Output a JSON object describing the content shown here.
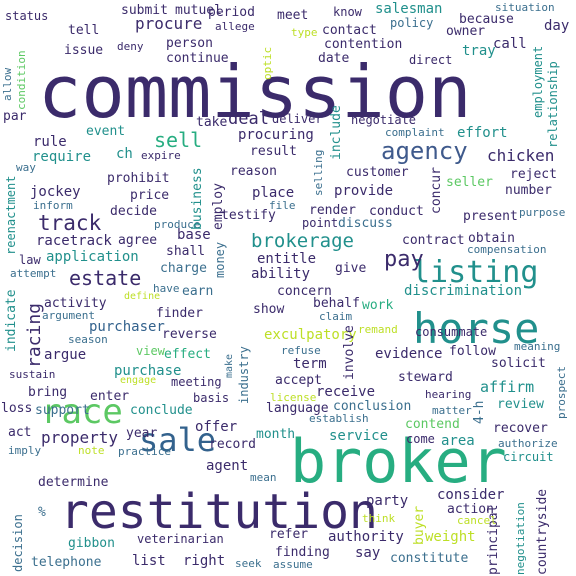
{
  "palette": {
    "navy": "#3b2b6b",
    "indigo": "#433a83",
    "blue": "#33628d",
    "steel": "#3f5a8c",
    "teal": "#21908c",
    "green": "#27ad81",
    "lime": "#5cc863",
    "yellow": "#bddf26",
    "gray": "#3b6f8e"
  },
  "words": [
    {
      "text": "commission",
      "color": "#3b2b6b"
    },
    {
      "text": "broker",
      "color": "#27ad81"
    },
    {
      "text": "restitution",
      "color": "#3b2b6b"
    },
    {
      "text": "horse",
      "color": "#21908c"
    },
    {
      "text": "sale",
      "color": "#33628d"
    },
    {
      "text": "race",
      "color": "#5cc863"
    },
    {
      "text": "listing",
      "color": "#21908c"
    },
    {
      "text": "agency",
      "color": "#3f5a8c"
    },
    {
      "text": "brokerage",
      "color": "#21908c"
    },
    {
      "text": "track",
      "color": "#3b2b6b"
    },
    {
      "text": "sell",
      "color": "#27ad81"
    },
    {
      "text": "pay",
      "color": "#3b2b6b"
    },
    {
      "text": "racing",
      "color": "#3b2b6b"
    },
    {
      "text": "estate",
      "color": "#3b2b6b"
    },
    {
      "text": "property",
      "color": "#3b2b6b"
    },
    {
      "text": "chicken",
      "color": "#3b2b6b"
    },
    {
      "text": "exculpatory",
      "color": "#bddf26"
    },
    {
      "text": "procure",
      "color": "#3b2b6b"
    },
    {
      "text": "discrimination",
      "color": "#21908c"
    },
    {
      "text": "salesman",
      "color": "#21908c"
    },
    {
      "text": "negotiate",
      "color": "#3b2b6b"
    },
    {
      "text": "evidence",
      "color": "#3b2b6b"
    },
    {
      "text": "purchaser",
      "color": "#33628d"
    },
    {
      "text": "service",
      "color": "#21908c"
    },
    {
      "text": "racetrack",
      "color": "#3b2b6b"
    },
    {
      "text": "conclusion",
      "color": "#3b6f8e"
    },
    {
      "text": "authority",
      "color": "#3b2b6b"
    },
    {
      "text": "veterinarian",
      "color": "#3b2b6b"
    },
    {
      "text": "telephone",
      "color": "#3b6f8e"
    },
    {
      "text": "list",
      "color": "#3b2b6b"
    },
    {
      "text": "right",
      "color": "#3b2b6b"
    },
    {
      "text": "finding",
      "color": "#3b2b6b"
    },
    {
      "text": "constitute",
      "color": "#3b6f8e"
    },
    {
      "text": "weight",
      "color": "#bddf26"
    },
    {
      "text": "consider",
      "color": "#3b2b6b"
    },
    {
      "text": "action",
      "color": "#3b2b6b"
    },
    {
      "text": "principal",
      "color": "#3b2b6b"
    },
    {
      "text": "countryside",
      "color": "#3b2b6b"
    },
    {
      "text": "negotiation",
      "color": "#21908c"
    },
    {
      "text": "affirm",
      "color": "#21908c"
    },
    {
      "text": "review",
      "color": "#21908c"
    },
    {
      "text": "recover",
      "color": "#3b2b6b"
    },
    {
      "text": "steward",
      "color": "#3b2b6b"
    },
    {
      "text": "receive",
      "color": "#3b2b6b"
    },
    {
      "text": "behalf",
      "color": "#3b2b6b"
    },
    {
      "text": "work",
      "color": "#27ad81"
    },
    {
      "text": "consummate",
      "color": "#3b2b6b"
    },
    {
      "text": "concern",
      "color": "#3b2b6b"
    },
    {
      "text": "show",
      "color": "#3b2b6b"
    },
    {
      "text": "reverse",
      "color": "#3b2b6b"
    },
    {
      "text": "finder",
      "color": "#3b2b6b"
    },
    {
      "text": "activity",
      "color": "#3b2b6b"
    },
    {
      "text": "argue",
      "color": "#3b2b6b"
    },
    {
      "text": "effect",
      "color": "#27ad81"
    },
    {
      "text": "view",
      "color": "#5cc863"
    },
    {
      "text": "purchase",
      "color": "#21908c"
    },
    {
      "text": "meeting",
      "color": "#3b2b6b"
    },
    {
      "text": "basis",
      "color": "#3b2b6b"
    },
    {
      "text": "language",
      "color": "#3b2b6b"
    },
    {
      "text": "accept",
      "color": "#3b2b6b"
    },
    {
      "text": "term",
      "color": "#3b2b6b"
    },
    {
      "text": "involve",
      "color": "#3b2b6b"
    },
    {
      "text": "follow",
      "color": "#3b2b6b"
    },
    {
      "text": "solicit",
      "color": "#3b2b6b"
    },
    {
      "text": "bring",
      "color": "#3b2b6b"
    },
    {
      "text": "support",
      "color": "#3b6f8e"
    },
    {
      "text": "enter",
      "color": "#3b2b6b"
    },
    {
      "text": "conclude",
      "color": "#21908c"
    },
    {
      "text": "offer",
      "color": "#3b2b6b"
    },
    {
      "text": "record",
      "color": "#3b2b6b"
    },
    {
      "text": "agent",
      "color": "#3b2b6b"
    },
    {
      "text": "month",
      "color": "#21908c"
    },
    {
      "text": "year",
      "color": "#3b2b6b"
    },
    {
      "text": "act",
      "color": "#3b2b6b"
    },
    {
      "text": "loss",
      "color": "#3b2b6b"
    },
    {
      "text": "determine",
      "color": "#3b2b6b"
    },
    {
      "text": "decision",
      "color": "#3b6f8e"
    },
    {
      "text": "gibbon",
      "color": "#21908c"
    },
    {
      "text": "refer",
      "color": "#3b2b6b"
    },
    {
      "text": "party",
      "color": "#3b2b6b"
    },
    {
      "text": "say",
      "color": "#3b2b6b"
    },
    {
      "text": "buyer",
      "color": "#bddf26"
    },
    {
      "text": "area",
      "color": "#21908c"
    },
    {
      "text": "come",
      "color": "#3b2b6b"
    },
    {
      "text": "circuit",
      "color": "#21908c"
    },
    {
      "text": "contend",
      "color": "#5cc863"
    },
    {
      "text": "hearing",
      "color": "#3b2b6b"
    },
    {
      "text": "matter",
      "color": "#3b6f8e"
    },
    {
      "text": "authorize",
      "color": "#3b6f8e"
    },
    {
      "text": "prospect",
      "color": "#3b6f8e"
    },
    {
      "text": "meaning",
      "color": "#3b6f8e"
    },
    {
      "text": "4-h",
      "color": "#3b6f8e"
    },
    {
      "text": "establish",
      "color": "#3b6f8e"
    },
    {
      "text": "industry",
      "color": "#3b6f8e"
    },
    {
      "text": "license",
      "color": "#bddf26"
    },
    {
      "text": "refuse",
      "color": "#3b6f8e"
    },
    {
      "text": "make",
      "color": "#3b6f8e"
    },
    {
      "text": "engage",
      "color": "#bddf26"
    },
    {
      "text": "sustain",
      "color": "#3b2b6b"
    },
    {
      "text": "season",
      "color": "#3b6f8e"
    },
    {
      "text": "argument",
      "color": "#3b6f8e"
    },
    {
      "text": "define",
      "color": "#bddf26"
    },
    {
      "text": "have",
      "color": "#3b6f8e"
    },
    {
      "text": "attempt",
      "color": "#3b6f8e"
    },
    {
      "text": "law",
      "color": "#3b2b6b"
    },
    {
      "text": "indicate",
      "color": "#21908c"
    },
    {
      "text": "application",
      "color": "#21908c"
    },
    {
      "text": "agree",
      "color": "#3b2b6b"
    },
    {
      "text": "base",
      "color": "#3b2b6b"
    },
    {
      "text": "shall",
      "color": "#3b2b6b"
    },
    {
      "text": "charge",
      "color": "#3b6f8e"
    },
    {
      "text": "earn",
      "color": "#3b6f8e"
    },
    {
      "text": "money",
      "color": "#3b6f8e"
    },
    {
      "text": "entitle",
      "color": "#3b2b6b"
    },
    {
      "text": "ability",
      "color": "#3b2b6b"
    },
    {
      "text": "give",
      "color": "#3b2b6b"
    },
    {
      "text": "claim",
      "color": "#3b6f8e"
    },
    {
      "text": "remand",
      "color": "#bddf26"
    },
    {
      "text": "render",
      "color": "#3b2b6b"
    },
    {
      "text": "point",
      "color": "#3b2b6b"
    },
    {
      "text": "discuss",
      "color": "#3b6f8e"
    },
    {
      "text": "contract",
      "color": "#3b2b6b"
    },
    {
      "text": "obtain",
      "color": "#3b2b6b"
    },
    {
      "text": "compensation",
      "color": "#3b6f8e"
    },
    {
      "text": "purpose",
      "color": "#3b6f8e"
    },
    {
      "text": "present",
      "color": "#3b2b6b"
    },
    {
      "text": "number",
      "color": "#3b2b6b"
    },
    {
      "text": "concur",
      "color": "#3b2b6b"
    },
    {
      "text": "conduct",
      "color": "#3b2b6b"
    },
    {
      "text": "file",
      "color": "#3b6f8e"
    },
    {
      "text": "testify",
      "color": "#3b2b6b"
    },
    {
      "text": "place",
      "color": "#3b2b6b"
    },
    {
      "text": "provide",
      "color": "#3b2b6b"
    },
    {
      "text": "customer",
      "color": "#3b2b6b"
    },
    {
      "text": "seller",
      "color": "#5cc863"
    },
    {
      "text": "reject",
      "color": "#3b2b6b"
    },
    {
      "text": "decide",
      "color": "#3b2b6b"
    },
    {
      "text": "price",
      "color": "#3b2b6b"
    },
    {
      "text": "produce",
      "color": "#3b6f8e"
    },
    {
      "text": "prohibit",
      "color": "#3b2b6b"
    },
    {
      "text": "business",
      "color": "#21908c"
    },
    {
      "text": "employ",
      "color": "#3b2b6b"
    },
    {
      "text": "reason",
      "color": "#3b2b6b"
    },
    {
      "text": "selling",
      "color": "#3b6f8e"
    },
    {
      "text": "expire",
      "color": "#3b2b6b"
    },
    {
      "text": "jockey",
      "color": "#3b2b6b"
    },
    {
      "text": "inform",
      "color": "#3b6f8e"
    },
    {
      "text": "reenactment",
      "color": "#21908c"
    },
    {
      "text": "way",
      "color": "#3b6f8e"
    },
    {
      "text": "require",
      "color": "#21908c"
    },
    {
      "text": "rule",
      "color": "#3b2b6b"
    },
    {
      "text": "ch",
      "color": "#21908c"
    },
    {
      "text": "event",
      "color": "#21908c"
    },
    {
      "text": "par",
      "color": "#3b2b6b"
    },
    {
      "text": "take",
      "color": "#3b2b6b"
    },
    {
      "text": "deal",
      "color": "#3b2b6b"
    },
    {
      "text": "deliver",
      "color": "#3b2b6b"
    },
    {
      "text": "procuring",
      "color": "#3b2b6b"
    },
    {
      "text": "result",
      "color": "#3b2b6b"
    },
    {
      "text": "include",
      "color": "#21908c"
    },
    {
      "text": "complaint",
      "color": "#3b6f8e"
    },
    {
      "text": "effort",
      "color": "#21908c"
    },
    {
      "text": "relationship",
      "color": "#21908c"
    },
    {
      "text": "employment",
      "color": "#21908c"
    },
    {
      "text": "continue",
      "color": "#3b2b6b"
    },
    {
      "text": "optic",
      "color": "#bddf26"
    },
    {
      "text": "date",
      "color": "#3b2b6b"
    },
    {
      "text": "direct",
      "color": "#3b2b6b"
    },
    {
      "text": "tray",
      "color": "#21908c"
    },
    {
      "text": "call",
      "color": "#3b2b6b"
    },
    {
      "text": "owner",
      "color": "#3b2b6b"
    },
    {
      "text": "contention",
      "color": "#3b2b6b"
    },
    {
      "text": "contact",
      "color": "#3b2b6b"
    },
    {
      "text": "person",
      "color": "#3b2b6b"
    },
    {
      "text": "allege",
      "color": "#3b2b6b"
    },
    {
      "text": "deny",
      "color": "#3b2b6b"
    },
    {
      "text": "issue",
      "color": "#3b2b6b"
    },
    {
      "text": "tell",
      "color": "#3b2b6b"
    },
    {
      "text": "submit",
      "color": "#3b2b6b"
    },
    {
      "text": "mutuel",
      "color": "#3b2b6b"
    },
    {
      "text": "period",
      "color": "#3b2b6b"
    },
    {
      "text": "meet",
      "color": "#3b2b6b"
    },
    {
      "text": "know",
      "color": "#3b2b6b"
    },
    {
      "text": "status",
      "color": "#3b2b6b"
    },
    {
      "text": "type",
      "color": "#bddf26"
    },
    {
      "text": "policy",
      "color": "#3b6f8e"
    },
    {
      "text": "because",
      "color": "#3b2b6b"
    },
    {
      "text": "situation",
      "color": "#3b6f8e"
    },
    {
      "text": "day",
      "color": "#3b2b6b"
    },
    {
      "text": "allow",
      "color": "#3b6f8e"
    },
    {
      "text": "condition",
      "color": "#5cc863"
    },
    {
      "text": "imply",
      "color": "#3b6f8e"
    },
    {
      "text": "note",
      "color": "#bddf26"
    },
    {
      "text": "practice",
      "color": "#3b6f8e"
    },
    {
      "text": "mean",
      "color": "#3b6f8e"
    },
    {
      "text": "seek",
      "color": "#3b6f8e"
    },
    {
      "text": "assume",
      "color": "#3b6f8e"
    },
    {
      "text": "think",
      "color": "#bddf26"
    },
    {
      "text": "cancel",
      "color": "#bddf26"
    },
    {
      "text": "%",
      "color": "#3b6f8e"
    }
  ]
}
